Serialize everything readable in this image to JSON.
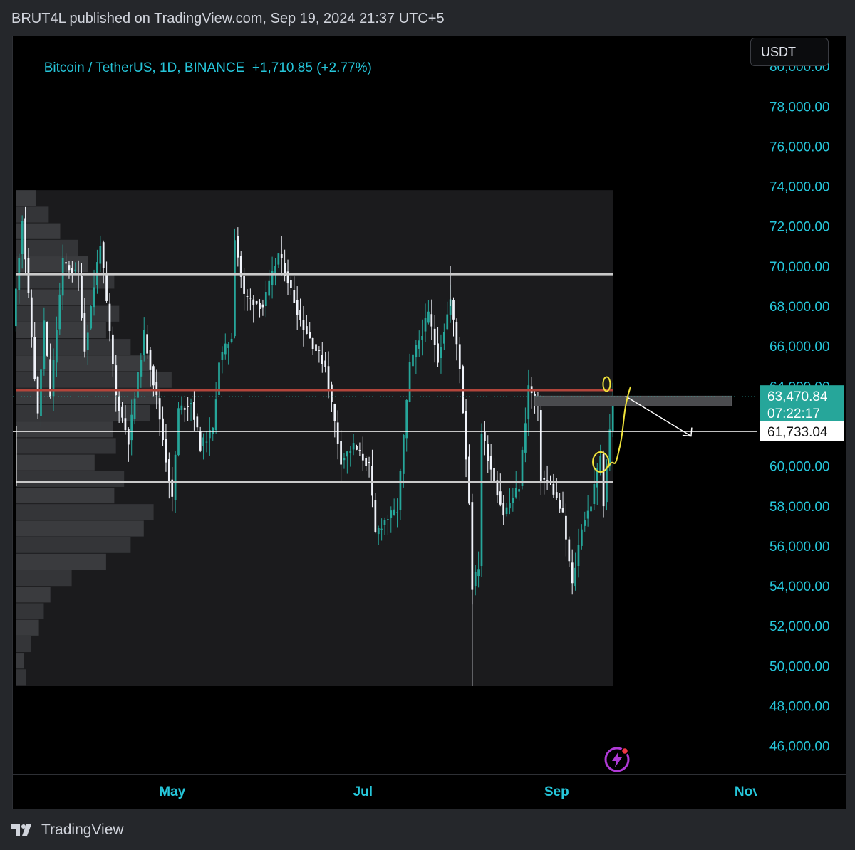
{
  "header": {
    "published_text": "BRUT4L published on TradingView.com, Sep 19, 2024 21:37 UTC+5"
  },
  "chart": {
    "symbol_title": "Bitcoin / TetherUS, 1D, BINANCE",
    "change_text": "+1,710.85 (+2.77%)",
    "currency_button": "USDT",
    "current_price": "63,470.84",
    "countdown": "07:22:17",
    "crosshair_price": "61,733.04"
  },
  "footer": {
    "brand": "TradingView"
  },
  "colors": {
    "up": "#26a69a",
    "down": "#f0f3fa",
    "accent": "#26c6da",
    "resistance": "#b2453b",
    "annotation": "#f2e53b",
    "badge": "#26a69a"
  },
  "chart_data": {
    "type": "candlestick",
    "title": "Bitcoin / TetherUS, 1D, BINANCE",
    "ylabel": "USDT",
    "ylim": [
      44600,
      81500
    ],
    "y_ticks": [
      "80,000.00",
      "78,000.00",
      "76,000.00",
      "74,000.00",
      "72,000.00",
      "70,000.00",
      "68,000.00",
      "66,000.00",
      "64,000.00",
      "60,000.00",
      "58,000.00",
      "56,000.00",
      "54,000.00",
      "52,000.00",
      "50,000.00",
      "48,000.00",
      "46,000.00"
    ],
    "y_tick_values": [
      80000,
      78000,
      76000,
      74000,
      72000,
      70000,
      68000,
      66000,
      64000,
      60000,
      58000,
      56000,
      54000,
      52000,
      50000,
      48000,
      46000
    ],
    "x_ticks": [
      "May",
      "Jul",
      "Sep",
      "Nov"
    ],
    "x_tick_dates": [
      "2024-05-01",
      "2024-07-01",
      "2024-09-01",
      "2024-11-01"
    ],
    "x_range": [
      "2024-03-11",
      "2024-11-04"
    ],
    "last_price": 63470.84,
    "crosshair_price": 61733.04,
    "horizontal_levels": [
      {
        "price": 69600,
        "color": "#c9c9c9"
      },
      {
        "price": 63800,
        "color": "#b2453b"
      },
      {
        "price": 59200,
        "color": "#c9c9c9"
      }
    ],
    "supply_zone": {
      "from_date": "2024-08-25",
      "to_date": "2024-10-27",
      "low": 63000,
      "high": 63500
    },
    "projection_arrow": {
      "from_date": "2024-09-23",
      "from_price": 63500,
      "to_date": "2024-10-14",
      "to_price": 61500
    },
    "volume_profile_range": {
      "from_date": "2024-03-12",
      "to_date": "2024-09-19",
      "low": 49000,
      "high": 73800
    },
    "volume_profile_rows": [
      6,
      5,
      9,
      14,
      17,
      21,
      34,
      55,
      70,
      78,
      84,
      60,
      66,
      48,
      61,
      59,
      82,
      88,
      95,
      82,
      70,
      55,
      63,
      48,
      60,
      44,
      38,
      27,
      20,
      12
    ],
    "anchors": [
      {
        "date": "2024-03-11",
        "price": 67000
      },
      {
        "date": "2024-03-14",
        "price": 72400
      },
      {
        "date": "2024-03-19",
        "price": 62500
      },
      {
        "date": "2024-03-21",
        "price": 67200
      },
      {
        "date": "2024-03-23",
        "price": 63500
      },
      {
        "date": "2024-03-27",
        "price": 70200
      },
      {
        "date": "2024-04-01",
        "price": 69500
      },
      {
        "date": "2024-04-03",
        "price": 65800
      },
      {
        "date": "2024-04-08",
        "price": 71200
      },
      {
        "date": "2024-04-13",
        "price": 63500
      },
      {
        "date": "2024-04-17",
        "price": 61300
      },
      {
        "date": "2024-04-22",
        "price": 66600
      },
      {
        "date": "2024-04-26",
        "price": 63400
      },
      {
        "date": "2024-05-01",
        "price": 58300
      },
      {
        "date": "2024-05-03",
        "price": 62800
      },
      {
        "date": "2024-05-07",
        "price": 63200
      },
      {
        "date": "2024-05-10",
        "price": 61000
      },
      {
        "date": "2024-05-14",
        "price": 61800
      },
      {
        "date": "2024-05-16",
        "price": 65300
      },
      {
        "date": "2024-05-20",
        "price": 66500
      },
      {
        "date": "2024-05-21",
        "price": 71500
      },
      {
        "date": "2024-05-24",
        "price": 68500
      },
      {
        "date": "2024-05-30",
        "price": 68000
      },
      {
        "date": "2024-06-04",
        "price": 70600
      },
      {
        "date": "2024-06-07",
        "price": 69300
      },
      {
        "date": "2024-06-11",
        "price": 67300
      },
      {
        "date": "2024-06-15",
        "price": 66100
      },
      {
        "date": "2024-06-19",
        "price": 65000
      },
      {
        "date": "2024-06-24",
        "price": 60300
      },
      {
        "date": "2024-06-28",
        "price": 61000
      },
      {
        "date": "2024-07-03",
        "price": 60000
      },
      {
        "date": "2024-07-05",
        "price": 56600
      },
      {
        "date": "2024-07-08",
        "price": 57300
      },
      {
        "date": "2024-07-12",
        "price": 57800
      },
      {
        "date": "2024-07-16",
        "price": 65000
      },
      {
        "date": "2024-07-22",
        "price": 67600
      },
      {
        "date": "2024-07-25",
        "price": 65400
      },
      {
        "date": "2024-07-29",
        "price": 68300
      },
      {
        "date": "2024-08-01",
        "price": 65000
      },
      {
        "date": "2024-08-04",
        "price": 58200
      },
      {
        "date": "2024-08-05",
        "price": 54000
      },
      {
        "date": "2024-08-07",
        "price": 55000
      },
      {
        "date": "2024-08-08",
        "price": 61700
      },
      {
        "date": "2024-08-12",
        "price": 59300
      },
      {
        "date": "2024-08-15",
        "price": 57600
      },
      {
        "date": "2024-08-20",
        "price": 59000
      },
      {
        "date": "2024-08-23",
        "price": 64000
      },
      {
        "date": "2024-08-26",
        "price": 62800
      },
      {
        "date": "2024-08-27",
        "price": 59400
      },
      {
        "date": "2024-08-30",
        "price": 59100
      },
      {
        "date": "2024-09-03",
        "price": 57500
      },
      {
        "date": "2024-09-06",
        "price": 54000
      },
      {
        "date": "2024-09-09",
        "price": 57000
      },
      {
        "date": "2024-09-12",
        "price": 58100
      },
      {
        "date": "2024-09-15",
        "price": 60600
      },
      {
        "date": "2024-09-16",
        "price": 58200
      },
      {
        "date": "2024-09-18",
        "price": 61760
      },
      {
        "date": "2024-09-19",
        "price": 63470
      }
    ]
  }
}
